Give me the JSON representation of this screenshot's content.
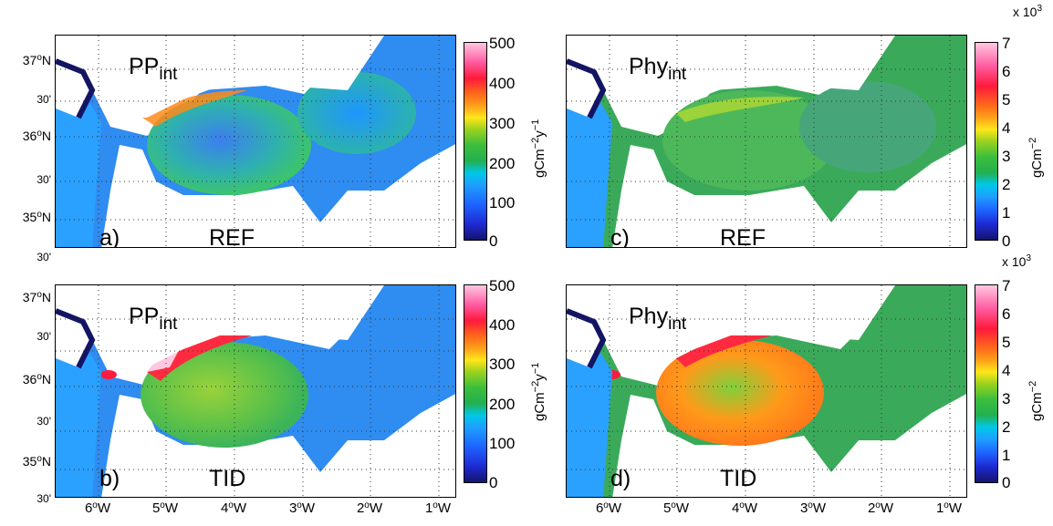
{
  "panels": [
    {
      "variable_main": "PP",
      "variable_sub": "int",
      "letter": "a)",
      "experiment": "REF"
    },
    {
      "variable_main": "PP",
      "variable_sub": "int",
      "letter": "b)",
      "experiment": "TID"
    },
    {
      "variable_main": "Phy",
      "variable_sub": "int",
      "letter": "c)",
      "experiment": "REF"
    },
    {
      "variable_main": "Phy",
      "variable_sub": "int",
      "letter": "d)",
      "experiment": "TID"
    }
  ],
  "lat_labels": [
    {
      "deg": "37",
      "o": "o",
      "hem": "N"
    },
    {
      "deg": "30'",
      "o": "",
      "hem": ""
    },
    {
      "deg": "36",
      "o": "o",
      "hem": "N"
    },
    {
      "deg": "30'",
      "o": "",
      "hem": ""
    },
    {
      "deg": "35",
      "o": "o",
      "hem": "N"
    },
    {
      "deg": "30'",
      "o": "",
      "hem": ""
    }
  ],
  "lon_labels": [
    {
      "deg": "6",
      "o": "o",
      "hem": "W"
    },
    {
      "deg": "5",
      "o": "o",
      "hem": "W"
    },
    {
      "deg": "4",
      "o": "o",
      "hem": "W"
    },
    {
      "deg": "3",
      "o": "o",
      "hem": "W"
    },
    {
      "deg": "2",
      "o": "o",
      "hem": "W"
    },
    {
      "deg": "1",
      "o": "o",
      "hem": "W"
    }
  ],
  "colorbars": {
    "pp": {
      "ticks": [
        "500",
        "400",
        "300",
        "200",
        "100",
        "0"
      ],
      "unit_base": "gCm",
      "unit_exp1": "−2",
      "unit_mid": "y",
      "unit_exp2": "−1"
    },
    "phy": {
      "ticks": [
        "7",
        "6",
        "5",
        "4",
        "3",
        "2",
        "1",
        "0"
      ],
      "unit_base": "gCm",
      "unit_exp1": "−2",
      "multiplier_base": "x 10",
      "multiplier_exp": "3"
    }
  },
  "palette": {
    "land": "#ffffff",
    "coast": "#141464",
    "deep": "#1a1aa0",
    "blue": "#1e64ff",
    "cyan": "#00bfff",
    "green": "#3cb44b",
    "yellow": "#ffe61a",
    "orange": "#ff7a1a",
    "red": "#ff1a40",
    "pink": "#ffc8e0"
  }
}
